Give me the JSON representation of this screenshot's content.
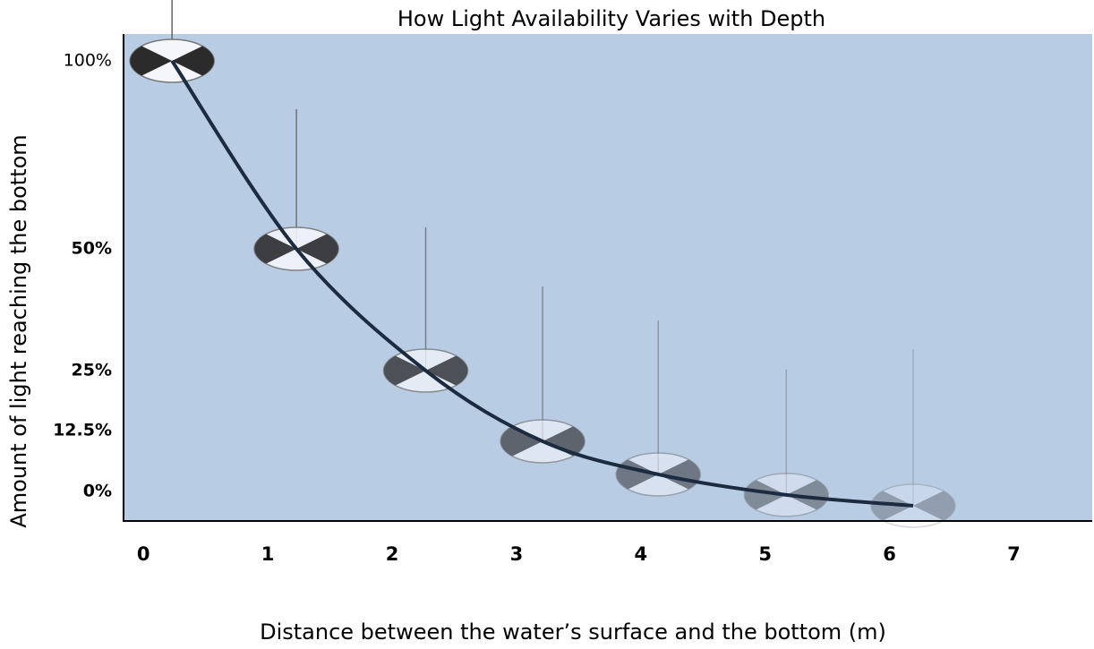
{
  "chart_data": {
    "type": "line",
    "title": "How Light Availability Varies with Depth",
    "x_label": "Distance between the water’s surface and the bottom (m)",
    "y_label": "Amount of light reaching the bottom",
    "x": [
      0.23,
      1.23,
      2.27,
      3.21,
      4.14,
      5.17,
      6.19
    ],
    "values": [
      100,
      50,
      25,
      10.3,
      3.5,
      -0.7,
      -2.9
    ],
    "color": "#1c2b40",
    "xlim": [
      -0.16,
      7.63
    ],
    "xticks": [
      0,
      1,
      2,
      3,
      4,
      5,
      6,
      7
    ],
    "ylim": [
      -6,
      107
    ],
    "yticks": [
      {
        "value": 100,
        "label": "100%"
      },
      {
        "value": 50,
        "label": "50%"
      },
      {
        "value": 25,
        "label": "25%"
      },
      {
        "value": 12.5,
        "label": "12.5%"
      },
      {
        "value": 0,
        "label": "0%"
      }
    ],
    "background": "#b8cce4",
    "grid": false
  }
}
